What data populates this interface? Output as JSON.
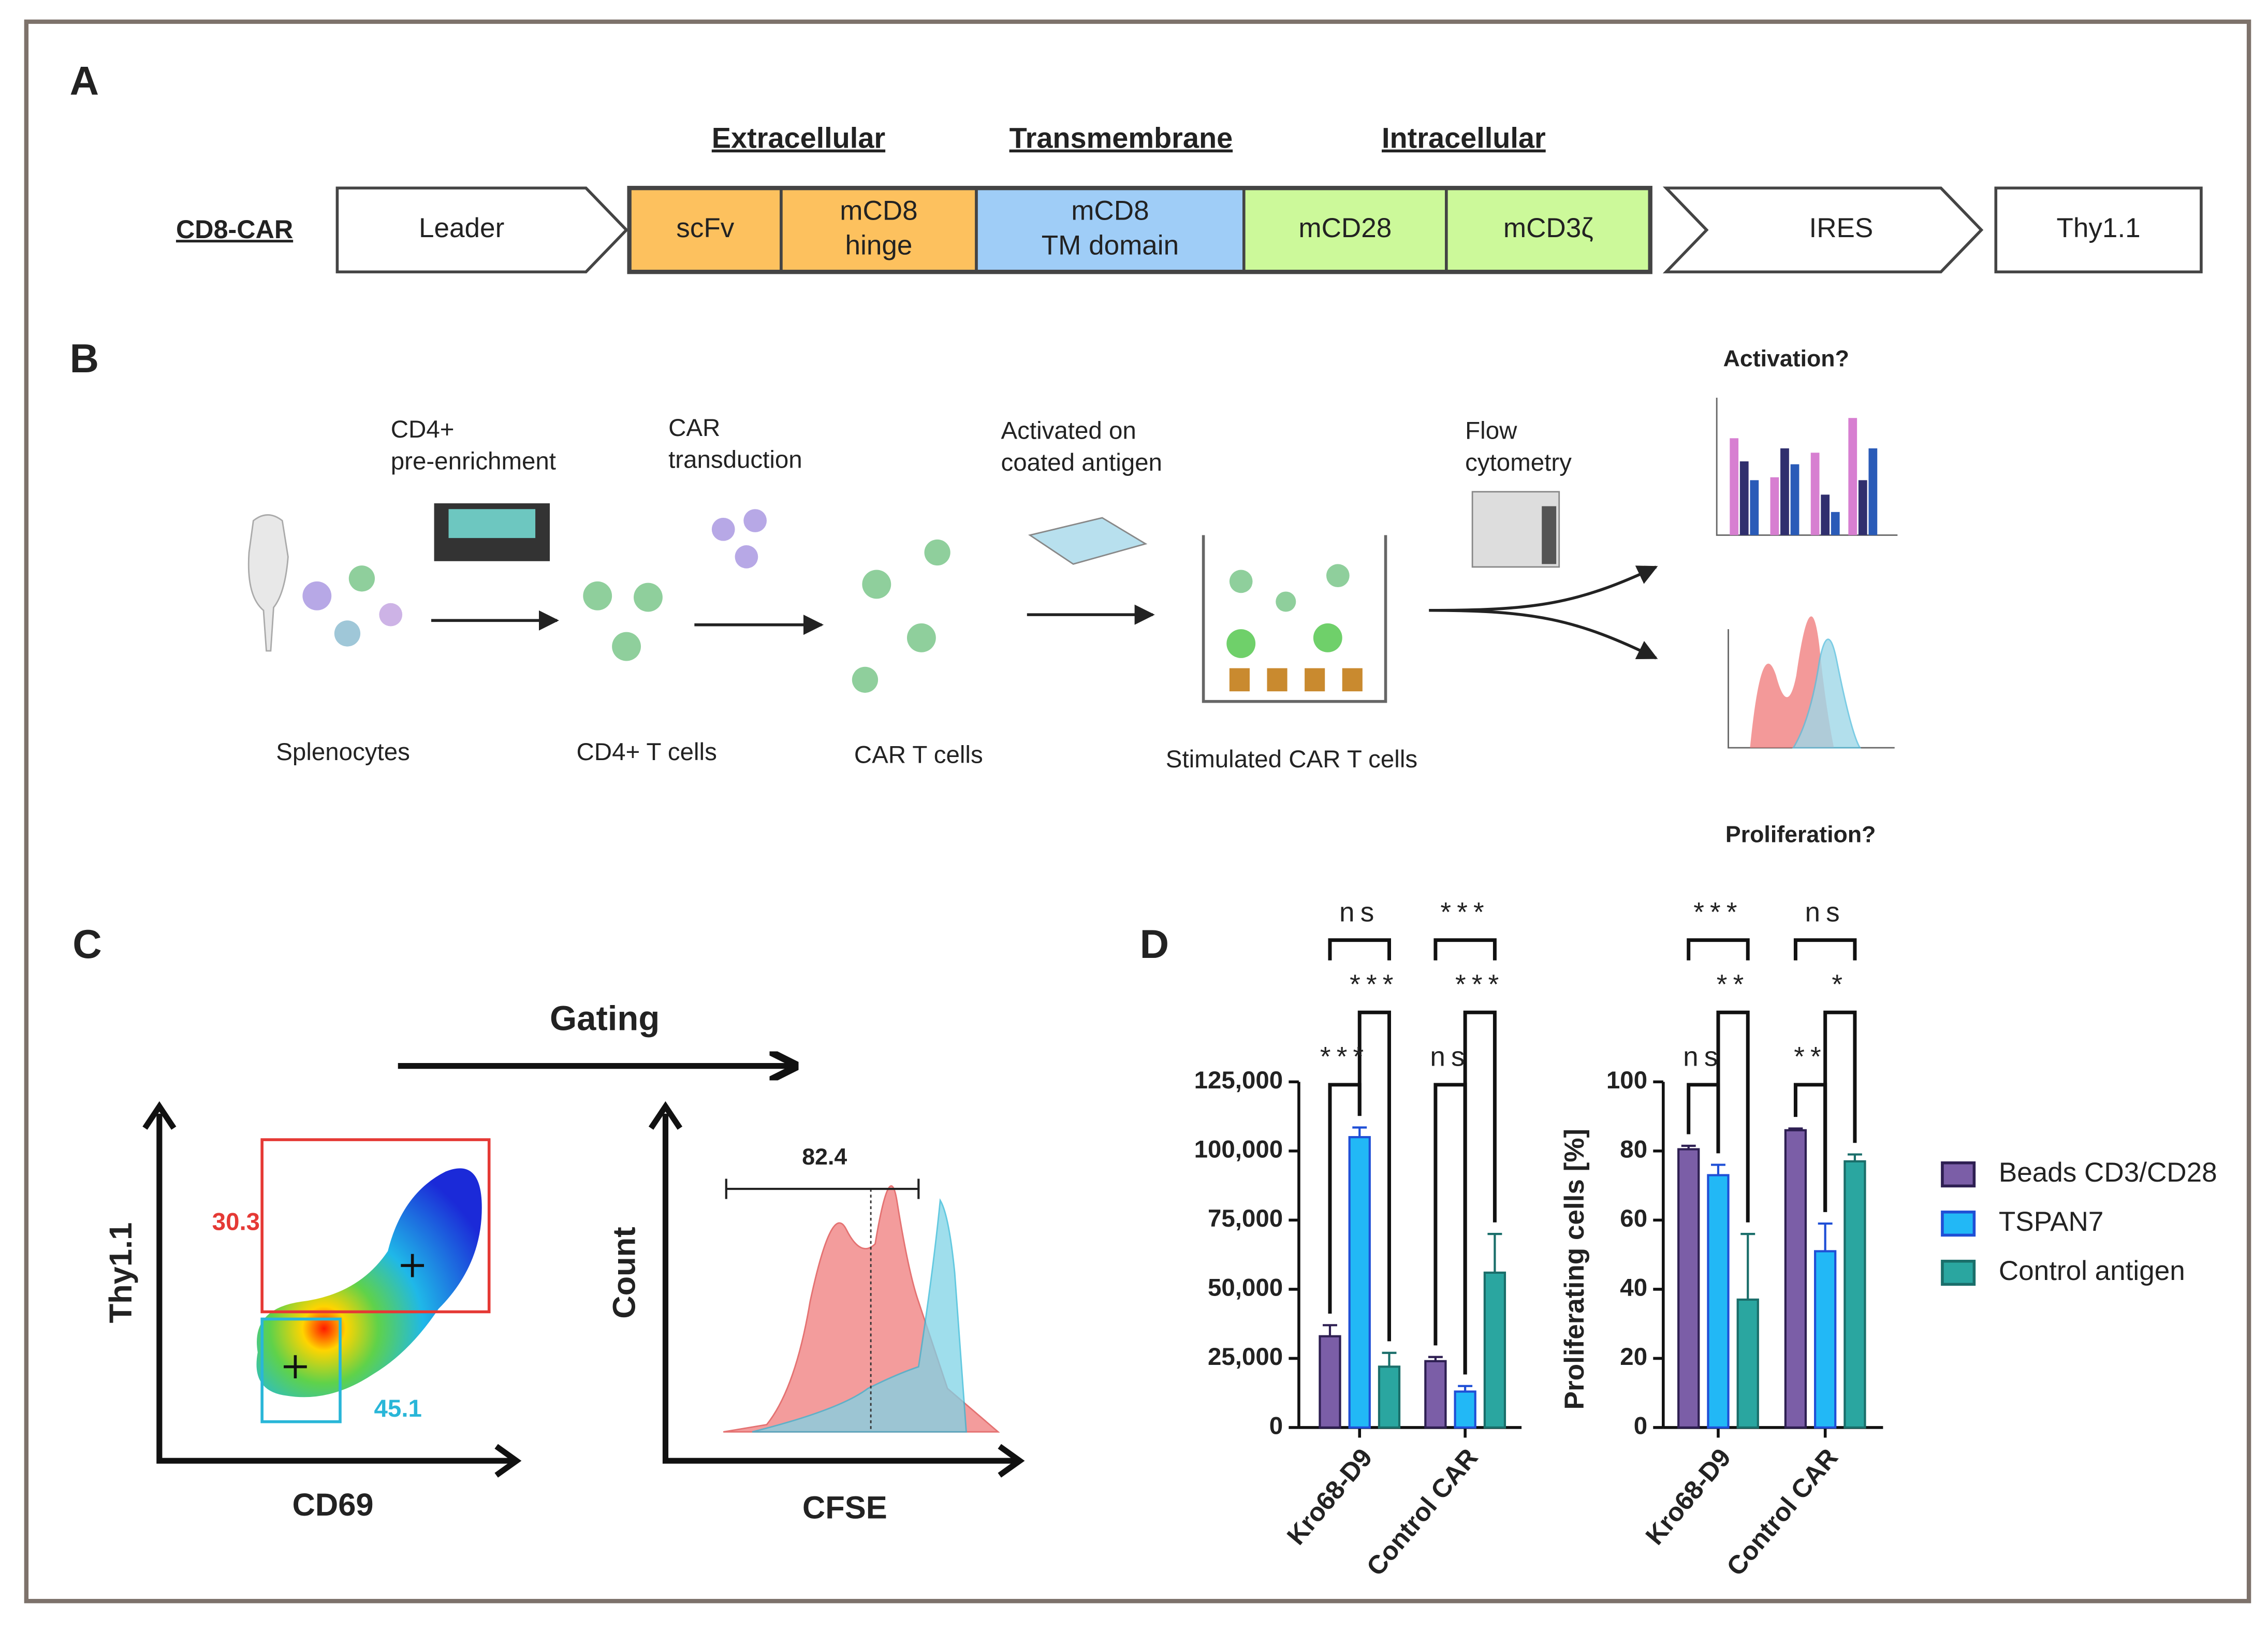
{
  "panel_a": {
    "letter": "A",
    "construct_label": "CD8-CAR",
    "headers": [
      "Extracellular",
      "Transmembrane",
      "Intracellular"
    ],
    "segments": [
      {
        "lines": [
          "Leader"
        ],
        "color": "#ffffff"
      },
      {
        "lines": [
          "scFv"
        ],
        "color": "#fdc15e"
      },
      {
        "lines": [
          "mCD8",
          "hinge"
        ],
        "color": "#fdc15e"
      },
      {
        "lines": [
          "mCD8",
          "TM domain"
        ],
        "color": "#9fcdf7"
      },
      {
        "lines": [
          "mCD28"
        ],
        "color": "#ccf99a"
      },
      {
        "lines": [
          "mCD3ζ"
        ],
        "color": "#ccf99a"
      },
      {
        "lines": [
          "IRES"
        ],
        "color": "#ffffff"
      },
      {
        "lines": [
          "Thy1.1"
        ],
        "color": "#ffffff"
      }
    ]
  },
  "panel_b": {
    "letter": "B",
    "steps": [
      "Splenocytes",
      "CD4+ T cells",
      "CAR T cells",
      "Stimulated CAR T cells"
    ],
    "transitions": [
      [
        "CD4+",
        "pre-enrichment"
      ],
      [
        "CAR",
        "transduction"
      ],
      [
        "Activated on",
        "coated antigen"
      ],
      [
        "Flow",
        "cytometry"
      ]
    ],
    "readouts": [
      "Activation?",
      "Proliferation?"
    ]
  },
  "panel_c": {
    "letter": "C",
    "arrow_label": "Gating",
    "dot_plot": {
      "ylabel": "Thy1.1",
      "xlabel": "CD69",
      "gates": [
        30.3,
        45.1
      ]
    },
    "histogram": {
      "ylabel": "Count",
      "xlabel": "CFSE",
      "gate": 82.4
    }
  },
  "panel_d": {
    "letter": "D"
  },
  "chart_data": [
    {
      "type": "bar",
      "categories": [
        "Kro68-D9",
        "Control CAR"
      ],
      "ylim": [
        0,
        125000
      ],
      "yticks": [
        0,
        {
          "value": 25000,
          "label": "25,000"
        },
        {
          "value": 50000,
          "label": "50,000"
        },
        {
          "value": 75000,
          "label": "75,000"
        },
        {
          "value": 100000,
          "label": "100,000"
        },
        {
          "value": 125000,
          "label": "125,000"
        }
      ],
      "series": [
        {
          "color": "#7b5ea7",
          "edgecolor": "#2e1f52",
          "values": [
            33000,
            24000
          ],
          "errors": [
            4000,
            1500
          ]
        },
        {
          "color": "#22b8f6",
          "edgecolor": "#1f4fd6",
          "values": [
            105000,
            13000
          ],
          "errors": [
            3500,
            2000
          ]
        },
        {
          "color": "#2aa6a0",
          "edgecolor": "#1a6e6a",
          "values": [
            22000,
            56000
          ],
          "errors": [
            5000,
            14000
          ]
        }
      ],
      "annotations": [
        "ns",
        "***",
        "***",
        "***",
        "***",
        "ns"
      ]
    },
    {
      "type": "bar",
      "categories": [
        "Kro68-D9",
        "Control CAR"
      ],
      "ylabel": "Proliferating cells [%]",
      "ylim": [
        0,
        100
      ],
      "yticks": [
        0,
        20,
        40,
        60,
        80,
        100
      ],
      "legend": "right",
      "series": [
        {
          "name": "Beads CD3/CD28",
          "color": "#7b5ea7",
          "edgecolor": "#2e1f52",
          "values": [
            80.5,
            86
          ],
          "errors": [
            1,
            0.5
          ]
        },
        {
          "name": "TSPAN7",
          "color": "#22b8f6",
          "edgecolor": "#1f4fd6",
          "values": [
            73,
            51
          ],
          "errors": [
            3,
            8
          ]
        },
        {
          "name": "Control antigen",
          "color": "#2aa6a0",
          "edgecolor": "#1a6e6a",
          "values": [
            37,
            77
          ],
          "errors": [
            19,
            2
          ]
        }
      ],
      "annotations": [
        "***",
        "ns",
        "**",
        "*",
        "ns",
        "**"
      ]
    }
  ]
}
